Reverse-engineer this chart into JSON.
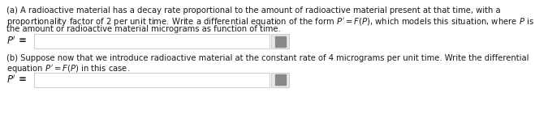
{
  "bg_color": "#ffffff",
  "text_color": "#1a1a1a",
  "para_a_line1": "(a) A radioactive material has a decay rate proportional to the amount of radioactive material present at that time, with a",
  "para_a_line2": "proportionality factor of 2 per unit time. Write a differential equation of the form $P^{\\prime} = F(P)$, which models this situation, where $P$ is",
  "para_a_line3": "the amount or radioactive material micrograms as function of time.",
  "para_b_line1": "(b) Suppose now that we introduce radioactive material at the constant rate of 4 micrograms per unit time. Write the differential",
  "para_b_line2": "equation $P^{\\prime} = F(P)$ in this case.",
  "label_a": "$P^{\\prime}$ =",
  "label_b": "$P^{\\prime}$ =",
  "font_size_text": 7.2,
  "font_size_label": 8.5,
  "box_edge_color": "#cccccc",
  "box_face_color": "#ffffff",
  "grid_color": "#888888",
  "grid_bg": "#e8e8e8"
}
